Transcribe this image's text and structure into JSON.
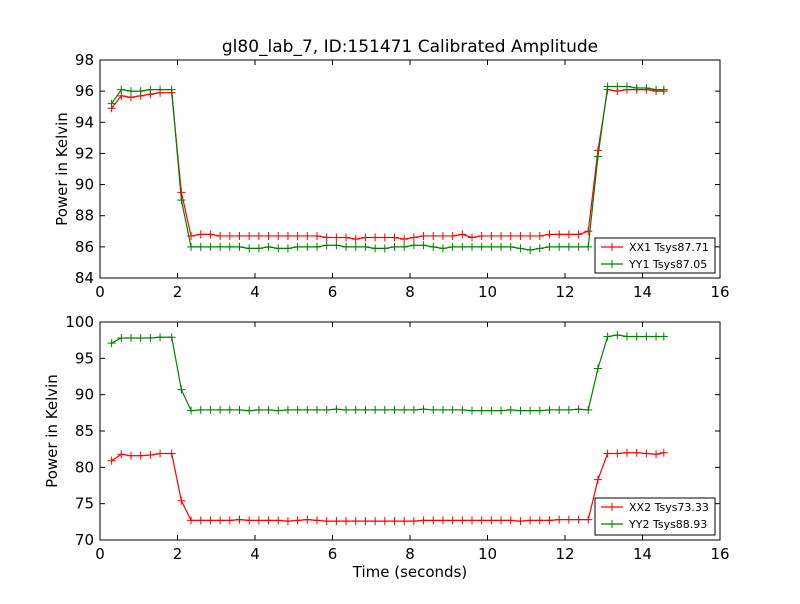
{
  "figure_title": "gl80_lab_7, ID:151471 Calibrated Amplitude",
  "colors": {
    "xx": "#ff0000",
    "yy": "#008000"
  },
  "chart_data": [
    {
      "type": "line",
      "title": "gl80_lab_7, ID:151471 Calibrated Amplitude",
      "xlabel": "",
      "ylabel": "Power in Kelvin",
      "xlim": [
        0,
        16
      ],
      "ylim": [
        84,
        98
      ],
      "xticks": [
        0,
        2,
        4,
        6,
        8,
        10,
        12,
        14,
        16
      ],
      "yticks": [
        84,
        86,
        88,
        90,
        92,
        94,
        96,
        98
      ],
      "legend_position": "lower-right",
      "series": [
        {
          "name": "XX1 Tsys87.71",
          "color": "#ff0000",
          "x": [
            0.3,
            0.55,
            0.8,
            1.05,
            1.3,
            1.55,
            1.85,
            2.1,
            2.35,
            2.6,
            2.85,
            3.1,
            3.35,
            3.6,
            3.85,
            4.1,
            4.35,
            4.6,
            4.85,
            5.1,
            5.35,
            5.6,
            5.85,
            6.1,
            6.35,
            6.6,
            6.85,
            7.1,
            7.35,
            7.6,
            7.85,
            8.1,
            8.35,
            8.6,
            8.85,
            9.1,
            9.35,
            9.6,
            9.85,
            10.1,
            10.35,
            10.6,
            10.85,
            11.1,
            11.35,
            11.6,
            11.85,
            12.1,
            12.35,
            12.6,
            12.85,
            13.1,
            13.35,
            13.6,
            13.85,
            14.1,
            14.35,
            14.55
          ],
          "values": [
            94.9,
            95.7,
            95.6,
            95.7,
            95.8,
            95.9,
            95.9,
            89.5,
            86.7,
            86.8,
            86.8,
            86.7,
            86.7,
            86.7,
            86.7,
            86.7,
            86.7,
            86.7,
            86.7,
            86.7,
            86.7,
            86.7,
            86.6,
            86.6,
            86.6,
            86.5,
            86.6,
            86.6,
            86.6,
            86.6,
            86.5,
            86.6,
            86.7,
            86.7,
            86.7,
            86.7,
            86.8,
            86.6,
            86.7,
            86.7,
            86.7,
            86.7,
            86.7,
            86.7,
            86.7,
            86.8,
            86.8,
            86.8,
            86.8,
            87.0,
            92.2,
            96.1,
            96.0,
            96.1,
            96.1,
            96.1,
            96.0,
            96.0
          ]
        },
        {
          "name": "YY1 Tsys87.05",
          "color": "#008000",
          "x": [
            0.3,
            0.55,
            0.8,
            1.05,
            1.3,
            1.55,
            1.85,
            2.1,
            2.35,
            2.6,
            2.85,
            3.1,
            3.35,
            3.6,
            3.85,
            4.1,
            4.35,
            4.6,
            4.85,
            5.1,
            5.35,
            5.6,
            5.85,
            6.1,
            6.35,
            6.6,
            6.85,
            7.1,
            7.35,
            7.6,
            7.85,
            8.1,
            8.35,
            8.6,
            8.85,
            9.1,
            9.35,
            9.6,
            9.85,
            10.1,
            10.35,
            10.6,
            10.85,
            11.1,
            11.35,
            11.6,
            11.85,
            12.1,
            12.35,
            12.6,
            12.85,
            13.1,
            13.35,
            13.6,
            13.85,
            14.1,
            14.35,
            14.55
          ],
          "values": [
            95.2,
            96.1,
            96.0,
            96.0,
            96.1,
            96.1,
            96.1,
            89.0,
            86.0,
            86.0,
            86.0,
            86.0,
            86.0,
            86.0,
            85.9,
            85.9,
            86.0,
            85.9,
            85.9,
            86.0,
            86.0,
            86.0,
            86.1,
            86.1,
            86.0,
            86.0,
            86.0,
            85.9,
            85.9,
            86.0,
            86.0,
            86.1,
            86.1,
            86.0,
            85.9,
            86.0,
            86.0,
            86.0,
            86.0,
            86.0,
            86.0,
            86.0,
            85.9,
            85.8,
            85.9,
            86.0,
            86.0,
            86.0,
            86.0,
            86.0,
            91.8,
            96.3,
            96.3,
            96.3,
            96.2,
            96.2,
            96.1,
            96.1
          ]
        }
      ]
    },
    {
      "type": "line",
      "title": "",
      "xlabel": "Time (seconds)",
      "ylabel": "Power in Kelvin",
      "xlim": [
        0,
        16
      ],
      "ylim": [
        70,
        100
      ],
      "xticks": [
        0,
        2,
        4,
        6,
        8,
        10,
        12,
        14,
        16
      ],
      "yticks": [
        70,
        75,
        80,
        85,
        90,
        95,
        100
      ],
      "legend_position": "lower-right",
      "series": [
        {
          "name": "XX2 Tsys73.33",
          "color": "#ff0000",
          "x": [
            0.3,
            0.55,
            0.8,
            1.05,
            1.3,
            1.55,
            1.85,
            2.1,
            2.35,
            2.6,
            2.85,
            3.1,
            3.35,
            3.6,
            3.85,
            4.1,
            4.35,
            4.6,
            4.85,
            5.1,
            5.35,
            5.6,
            5.85,
            6.1,
            6.35,
            6.6,
            6.85,
            7.1,
            7.35,
            7.6,
            7.85,
            8.1,
            8.35,
            8.6,
            8.85,
            9.1,
            9.35,
            9.6,
            9.85,
            10.1,
            10.35,
            10.6,
            10.85,
            11.1,
            11.35,
            11.6,
            11.85,
            12.1,
            12.35,
            12.6,
            12.85,
            13.1,
            13.35,
            13.6,
            13.85,
            14.1,
            14.35,
            14.55
          ],
          "values": [
            80.9,
            81.8,
            81.6,
            81.6,
            81.7,
            81.9,
            81.9,
            75.4,
            72.7,
            72.7,
            72.7,
            72.7,
            72.7,
            72.8,
            72.7,
            72.7,
            72.7,
            72.7,
            72.6,
            72.7,
            72.8,
            72.7,
            72.6,
            72.6,
            72.6,
            72.6,
            72.6,
            72.6,
            72.6,
            72.6,
            72.6,
            72.6,
            72.7,
            72.7,
            72.7,
            72.7,
            72.7,
            72.7,
            72.7,
            72.7,
            72.7,
            72.7,
            72.6,
            72.7,
            72.7,
            72.7,
            72.8,
            72.8,
            72.8,
            72.8,
            78.3,
            81.9,
            81.9,
            82.0,
            82.0,
            81.9,
            81.8,
            82.0
          ]
        },
        {
          "name": "YY2 Tsys88.93",
          "color": "#008000",
          "x": [
            0.3,
            0.55,
            0.8,
            1.05,
            1.3,
            1.55,
            1.85,
            2.1,
            2.35,
            2.6,
            2.85,
            3.1,
            3.35,
            3.6,
            3.85,
            4.1,
            4.35,
            4.6,
            4.85,
            5.1,
            5.35,
            5.6,
            5.85,
            6.1,
            6.35,
            6.6,
            6.85,
            7.1,
            7.35,
            7.6,
            7.85,
            8.1,
            8.35,
            8.6,
            8.85,
            9.1,
            9.35,
            9.6,
            9.85,
            10.1,
            10.35,
            10.6,
            10.85,
            11.1,
            11.35,
            11.6,
            11.85,
            12.1,
            12.35,
            12.6,
            12.85,
            13.1,
            13.35,
            13.6,
            13.85,
            14.1,
            14.35,
            14.55
          ],
          "values": [
            97.1,
            97.8,
            97.8,
            97.8,
            97.8,
            97.9,
            97.9,
            90.7,
            87.8,
            87.9,
            87.9,
            87.9,
            87.9,
            87.9,
            87.8,
            87.9,
            87.9,
            87.8,
            87.9,
            87.9,
            87.9,
            87.9,
            87.9,
            88.0,
            87.9,
            87.9,
            87.9,
            87.9,
            87.9,
            87.9,
            87.9,
            87.9,
            88.0,
            87.9,
            87.9,
            87.9,
            87.9,
            87.8,
            87.8,
            87.8,
            87.8,
            87.9,
            87.8,
            87.8,
            87.8,
            87.9,
            87.9,
            87.9,
            88.0,
            87.9,
            93.6,
            98.0,
            98.2,
            98.0,
            98.0,
            98.0,
            98.0,
            98.0
          ]
        }
      ]
    }
  ]
}
